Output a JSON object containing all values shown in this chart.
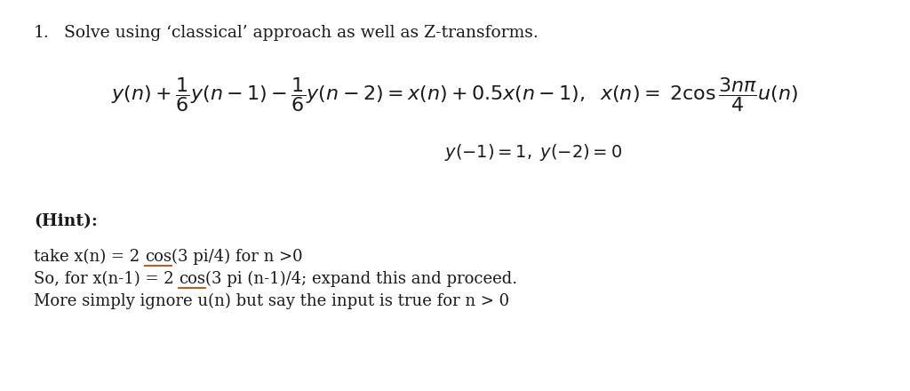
{
  "bg_color": "#ffffff",
  "fig_width": 10.24,
  "fig_height": 4.4,
  "dpi": 100,
  "text_color": "#1a1a1a",
  "underline_color": "#c84400",
  "font_family": "DejaVu Serif",
  "title_fontsize": 13.5,
  "eq_fontsize": 16,
  "ic_fontsize": 14,
  "hint_label_fontsize": 13.5,
  "hint_body_fontsize": 13.0,
  "item_number": "1.",
  "item_text": "Solve using ‘classical’ approach as well as Z-transforms.",
  "hint_label": "(Hint):",
  "hint1_pre": "take x(n) = 2 ",
  "hint1_cos": "cos",
  "hint1_post": "(3 pi/4) for n >0",
  "hint2_pre": "So, for x(n-1) = 2 ",
  "hint2_cos": "cos",
  "hint2_post": "(3 pi (n-1)/4; expand this and proceed.",
  "hint3": "More simply ignore u(n) but say the input is true for n > 0"
}
